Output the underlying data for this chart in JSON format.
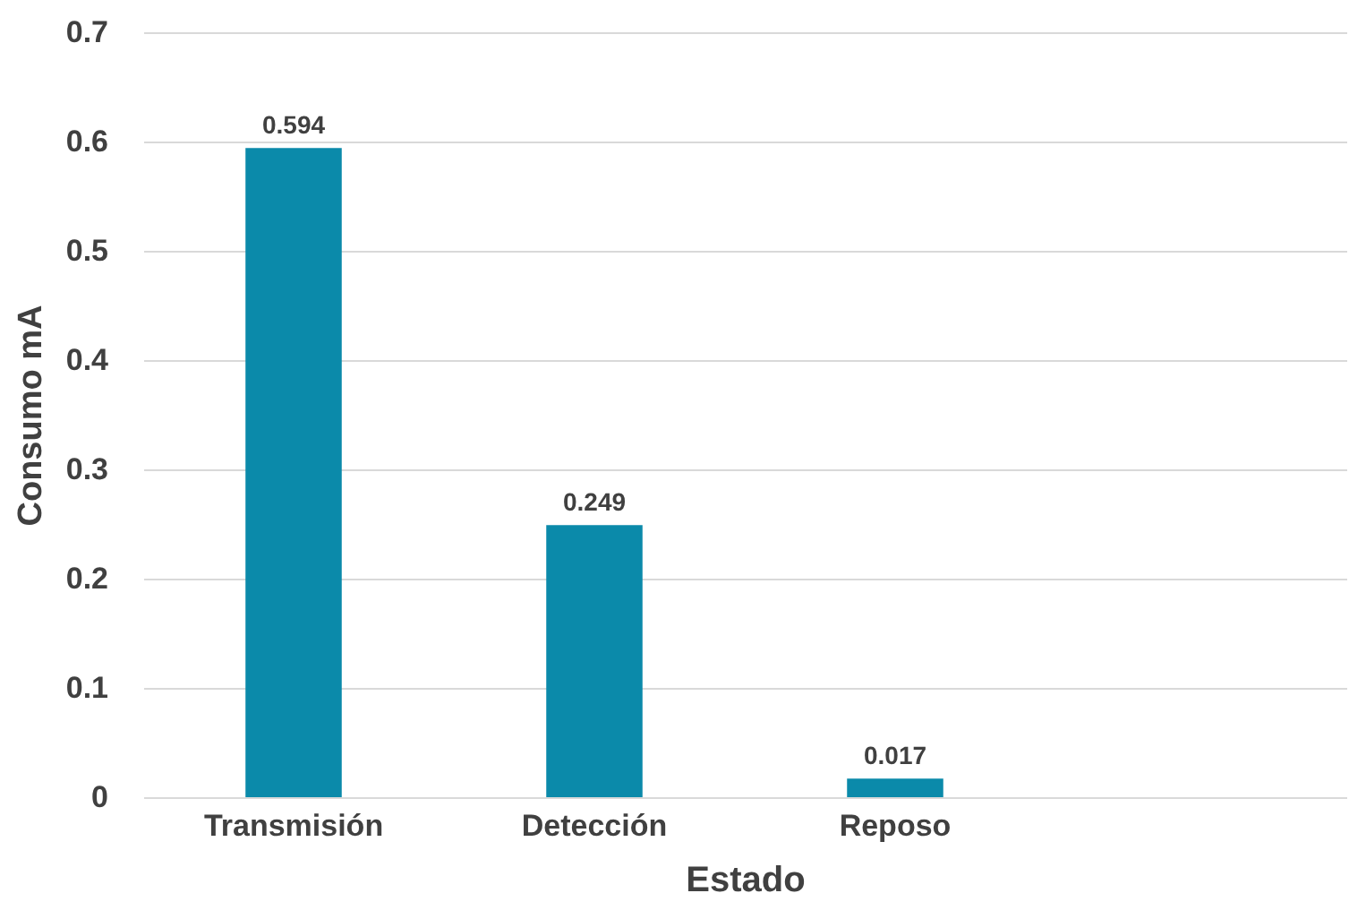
{
  "chart_data": {
    "type": "bar",
    "xlabel": "Estado",
    "ylabel": "Consumo mA",
    "categories": [
      "Transmisión",
      "Detección",
      "Reposo",
      null
    ],
    "values": [
      0.594,
      0.249,
      0.017,
      null
    ],
    "color": "#0b8aaa",
    "ylim": [
      0,
      0.7
    ],
    "yticks": [
      0,
      0.1,
      0.2,
      0.3,
      0.4,
      0.5,
      0.6,
      0.7
    ],
    "grid": "y",
    "data_labels": true
  }
}
